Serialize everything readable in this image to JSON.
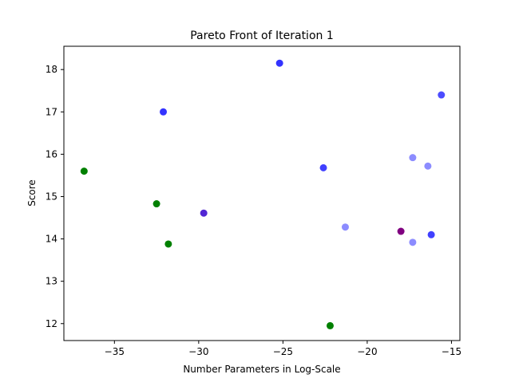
{
  "chart_data": {
    "type": "scatter",
    "title": "Pareto Front of Iteration 1",
    "xlabel": "Number Parameters in Log-Scale",
    "ylabel": "Score",
    "xlim": [
      -38.0,
      -14.5
    ],
    "ylim": [
      11.6,
      18.55
    ],
    "xticks": [
      -35,
      -30,
      -25,
      -20,
      -15
    ],
    "xtick_labels": [
      "−35",
      "−30",
      "−25",
      "−20",
      "−15"
    ],
    "yticks": [
      12,
      13,
      14,
      15,
      16,
      17,
      18
    ],
    "ytick_labels": [
      "12",
      "13",
      "14",
      "15",
      "16",
      "17",
      "18"
    ],
    "grid": false,
    "legend": "none",
    "points": [
      {
        "x": -25.2,
        "y": 18.15,
        "color": "#0000ff",
        "alpha": 0.8
      },
      {
        "x": -15.6,
        "y": 17.4,
        "color": "#0000ff",
        "alpha": 0.7
      },
      {
        "x": -32.1,
        "y": 17.0,
        "color": "#0000ff",
        "alpha": 0.8
      },
      {
        "x": -17.3,
        "y": 15.92,
        "color": "#0000ff",
        "alpha": 0.45
      },
      {
        "x": -16.4,
        "y": 15.72,
        "color": "#0000ff",
        "alpha": 0.45
      },
      {
        "x": -22.6,
        "y": 15.68,
        "color": "#0000ff",
        "alpha": 0.75
      },
      {
        "x": -36.8,
        "y": 15.6,
        "color": "#008000",
        "alpha": 1.0
      },
      {
        "x": -32.5,
        "y": 14.83,
        "color": "#008000",
        "alpha": 1.0
      },
      {
        "x": -29.7,
        "y": 14.61,
        "color": "#3300cc",
        "alpha": 0.85
      },
      {
        "x": -21.3,
        "y": 14.28,
        "color": "#0000ff",
        "alpha": 0.45
      },
      {
        "x": -18.0,
        "y": 14.18,
        "color": "#800080",
        "alpha": 1.0
      },
      {
        "x": -16.2,
        "y": 14.1,
        "color": "#0000ff",
        "alpha": 0.75
      },
      {
        "x": -17.3,
        "y": 13.92,
        "color": "#0000ff",
        "alpha": 0.45
      },
      {
        "x": -31.8,
        "y": 13.88,
        "color": "#008000",
        "alpha": 1.0
      },
      {
        "x": -22.2,
        "y": 11.95,
        "color": "#008000",
        "alpha": 1.0
      }
    ]
  }
}
